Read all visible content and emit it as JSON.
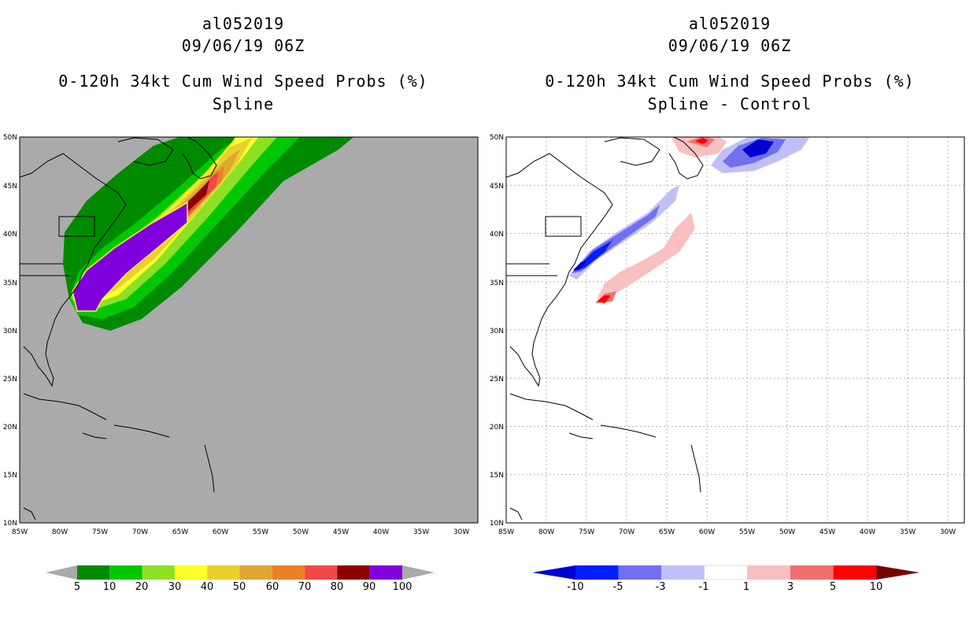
{
  "panels": [
    {
      "storm_id": "al052019",
      "datetime": "09/06/19 06Z",
      "product": "0-120h 34kt Cum Wind Speed Probs (%)",
      "subtitle": "Spline",
      "colorbar": {
        "labels": [
          "5",
          "10",
          "20",
          "30",
          "40",
          "50",
          "60",
          "70",
          "80",
          "90",
          "100"
        ],
        "colors": [
          "#008a00",
          "#00c800",
          "#8ee024",
          "#ffff2a",
          "#e8d030",
          "#e0a832",
          "#ec8028",
          "#f04848",
          "#8c0000",
          "#7f00dc"
        ]
      }
    },
    {
      "storm_id": "al052019",
      "datetime": "09/06/19 06Z",
      "product": "0-120h 34kt Cum Wind Speed Probs (%)",
      "subtitle": "Spline - Control",
      "colorbar": {
        "labels": [
          "-10",
          "-5",
          "-3",
          "-1",
          "1",
          "3",
          "5",
          "10"
        ],
        "colors": [
          "#0000d0",
          "#0020ff",
          "#7070f0",
          "#c0c0f8",
          "#ffffff",
          "#f8c0c0",
          "#f07070",
          "#ff0000",
          "#780000"
        ]
      }
    }
  ],
  "map_axes": {
    "lat_labels": [
      "50N",
      "45N",
      "40N",
      "35N",
      "30N",
      "25N",
      "20N",
      "15N",
      "10N"
    ],
    "lon_labels": [
      "85W",
      "80W",
      "75W",
      "70W",
      "65W",
      "60W",
      "55W",
      "50W",
      "45W",
      "40W",
      "35W",
      "30W"
    ]
  },
  "colors": {
    "ocean_gray": "#aaaaaa",
    "gridline": "#b4b4b4"
  }
}
